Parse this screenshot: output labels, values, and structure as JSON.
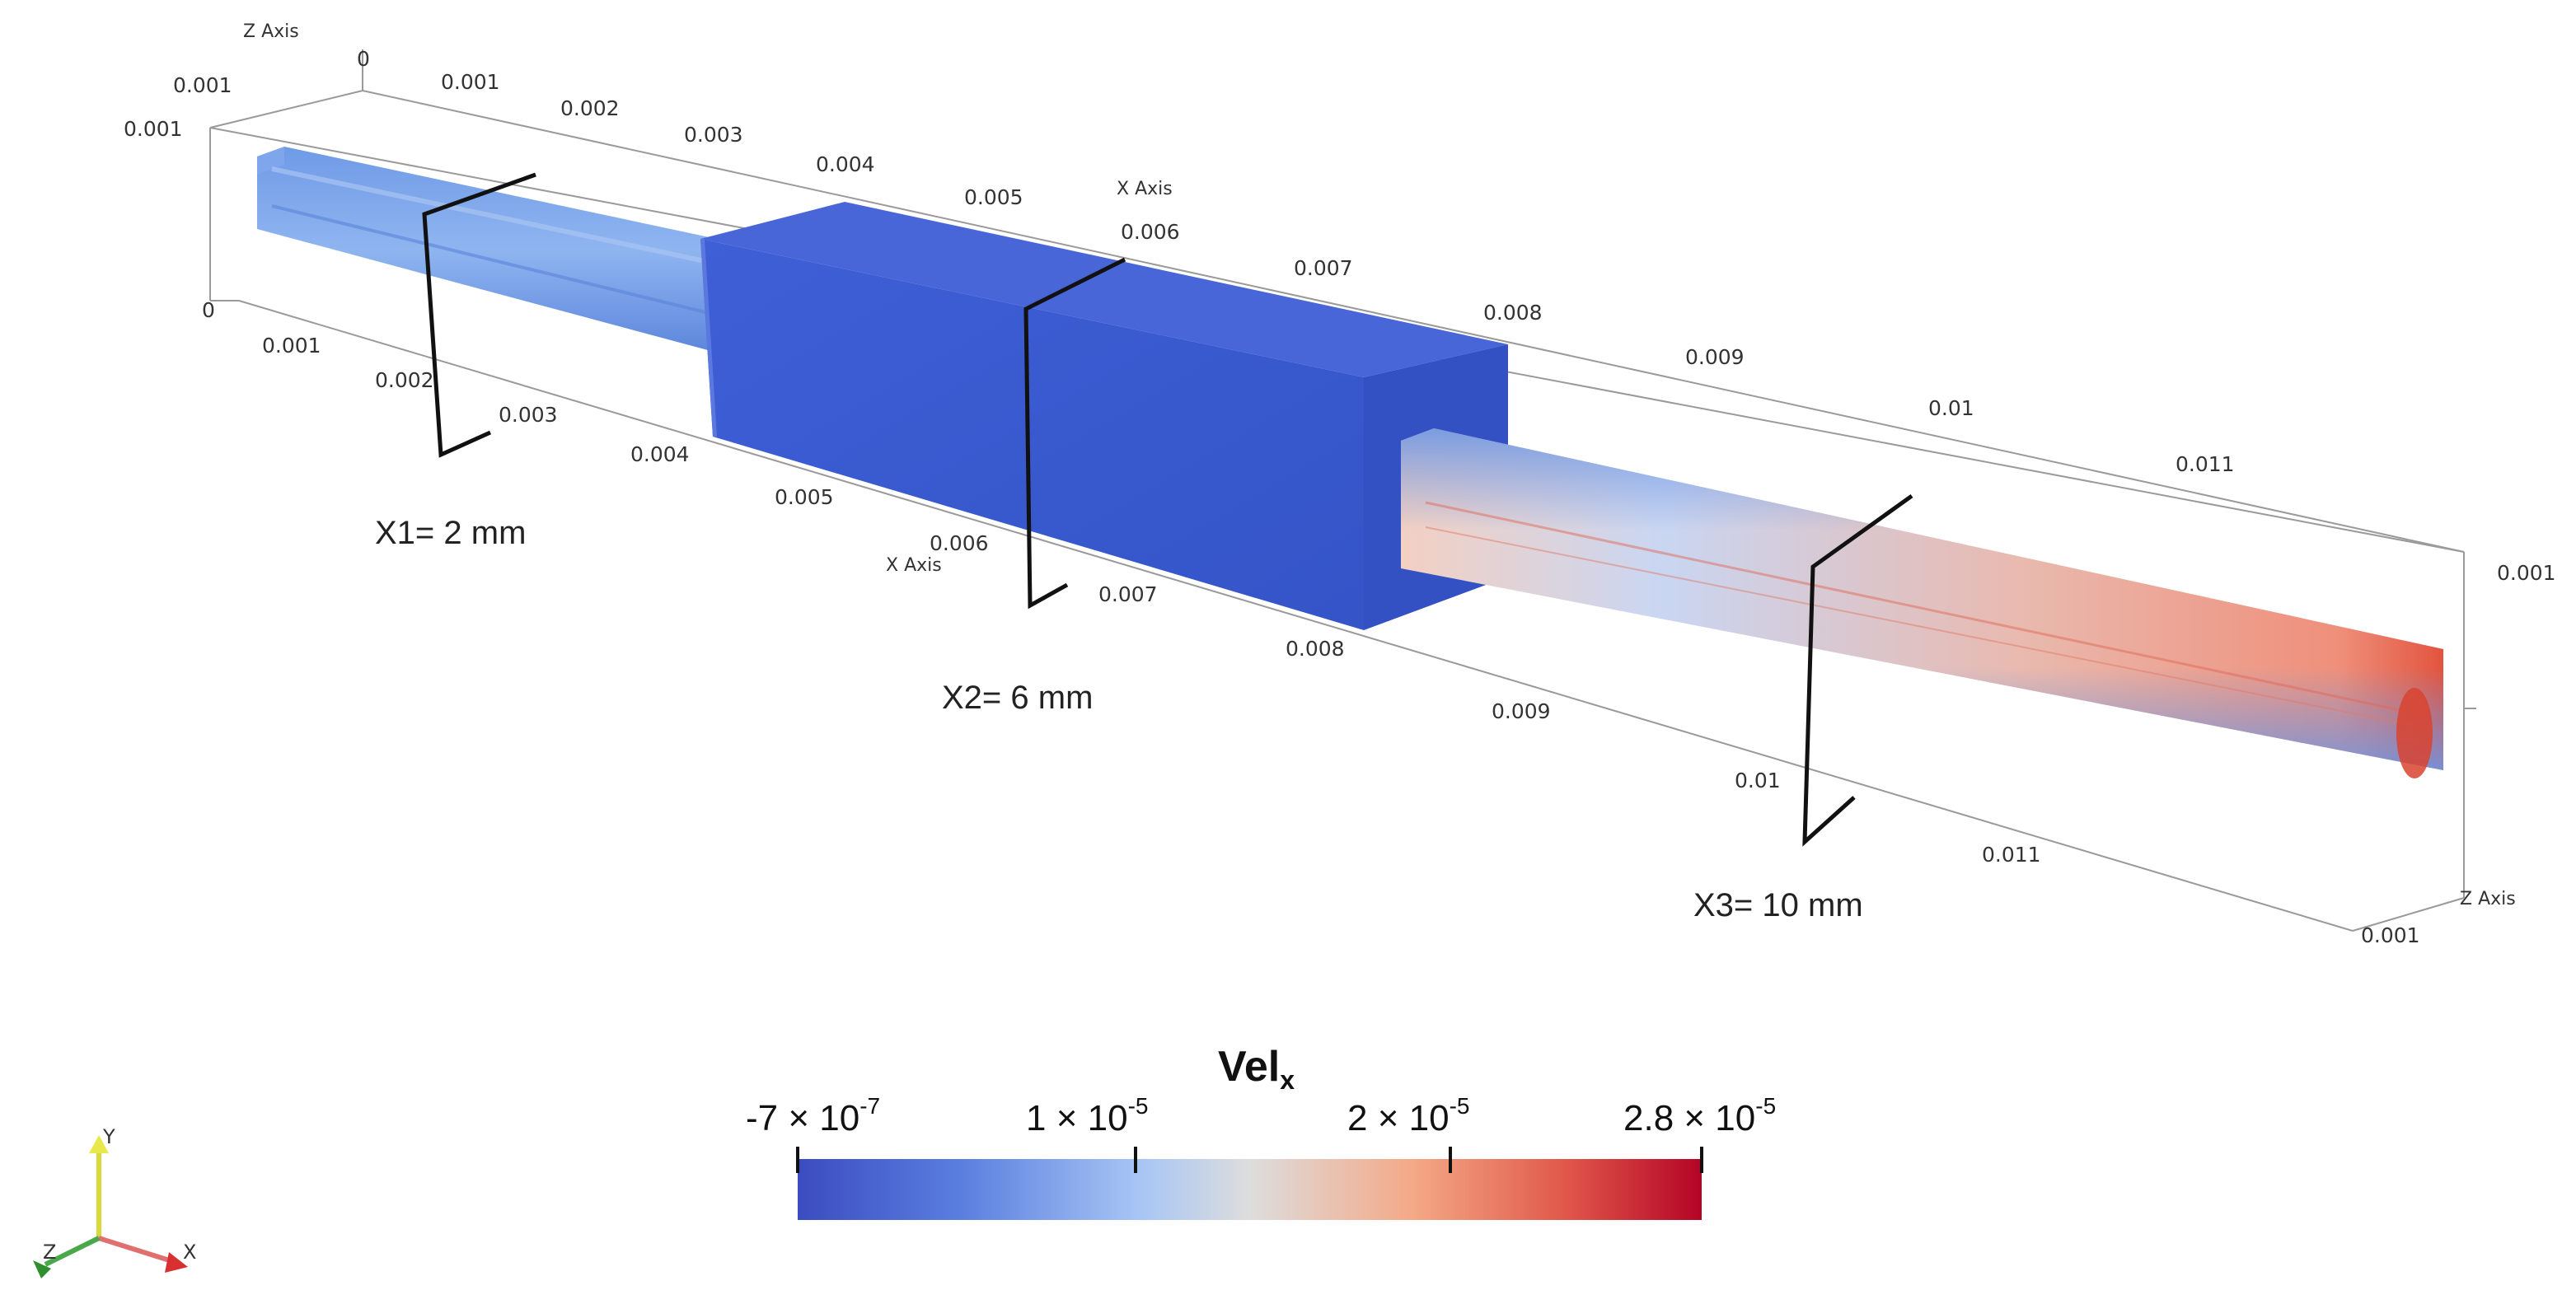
{
  "axes": {
    "z_axis_label_top": "Z Axis",
    "z_axis_label_right": "Z Axis",
    "x_axis_label_top": "X Axis",
    "x_axis_label_bottom": "X Axis",
    "top_left_ticks": [
      "0.001",
      "0.001",
      "0"
    ],
    "top_edge_ticks": [
      "0",
      "0.001",
      "0.002",
      "0.003",
      "0.004",
      "0.005",
      "0.006",
      "0.007",
      "0.008",
      "0.009",
      "0.01",
      "0.011"
    ],
    "bottom_edge_ticks": [
      "0.001",
      "0.002",
      "0.003",
      "0.004",
      "0.005",
      "0.006",
      "0.007",
      "0.008",
      "0.009",
      "0.01",
      "0.011"
    ],
    "right_ticks": [
      "0.001",
      "0.001"
    ]
  },
  "sections": [
    {
      "label": "X1= 2 mm"
    },
    {
      "label": "X2= 6 mm"
    },
    {
      "label": "X3= 10 mm"
    }
  ],
  "colorbar": {
    "title_main": "Vel",
    "title_sub": "x",
    "ticks": [
      {
        "base": "-7 × 10",
        "exp": "-7"
      },
      {
        "base": "1 × 10",
        "exp": "-5"
      },
      {
        "base": "2 × 10",
        "exp": "-5"
      },
      {
        "base": "2.8 × 10",
        "exp": "-5"
      }
    ],
    "colors": {
      "low": "#3b4cc0",
      "mid": "#dddddd",
      "high": "#b40426"
    }
  },
  "orientation": {
    "y": "Y",
    "x": "X",
    "z": "Z"
  }
}
